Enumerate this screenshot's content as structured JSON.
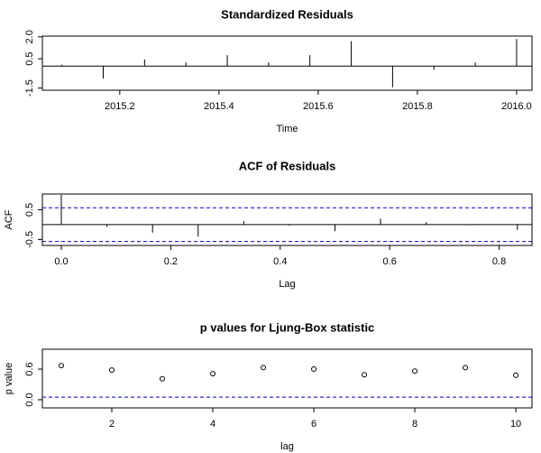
{
  "chart_data": [
    {
      "type": "spike",
      "title": "Standardized Residuals",
      "x_label": "Time",
      "x": [
        2015.0833,
        2015.1667,
        2015.25,
        2015.3333,
        2015.4167,
        2015.5,
        2015.5833,
        2015.6667,
        2015.75,
        2015.8333,
        2015.9167,
        2016
      ],
      "values": [
        0.1,
        -0.85,
        0.45,
        0.25,
        0.75,
        0.25,
        0.75,
        1.7,
        -1.45,
        -0.25,
        0.25,
        1.85
      ],
      "color": "#000000",
      "xlim": [
        2015.044,
        2016.031
      ],
      "ylim": [
        -1.65,
        2.05
      ],
      "xticks": [
        2015.2,
        2015.4,
        2015.6,
        2015.8,
        {
          "value": 2016,
          "label": "2016.0"
        }
      ],
      "yticks": [
        {
          "value": -1.5,
          "label": "-1.5"
        },
        {
          "value": 0.5,
          "label": "0.5"
        },
        {
          "value": 2,
          "label": "2.0"
        }
      ]
    },
    {
      "type": "spike",
      "title": "ACF of Residuals",
      "x_label": "Lag",
      "y_label": "ACF",
      "x": [
        0,
        0.0833,
        0.1667,
        0.25,
        0.3333,
        0.4167,
        0.5,
        0.5833,
        0.6667,
        0.75,
        0.8333
      ],
      "values": [
        1.0,
        -0.07,
        -0.27,
        -0.4,
        0.12,
        -0.03,
        -0.22,
        0.2,
        0.08,
        -0.02,
        -0.18
      ],
      "color": "#000000",
      "hlines": [
        0.566,
        -0.566
      ],
      "hline_color": "#0000cd",
      "xlim": [
        -0.0346,
        0.86
      ],
      "ylim": [
        -0.7,
        1.03
      ],
      "xticks": [
        {
          "value": 0,
          "label": "0.0"
        },
        0.2,
        0.4,
        0.6,
        0.8
      ],
      "yticks": [
        {
          "value": -0.5,
          "label": "-0.5"
        },
        0.5
      ]
    },
    {
      "type": "scatter",
      "title": "p values for Ljung-Box statistic",
      "x_label": "lag",
      "y_label": "p value",
      "x": [
        1,
        2,
        3,
        4,
        5,
        6,
        7,
        8,
        9,
        10
      ],
      "values": [
        0.67,
        0.58,
        0.41,
        0.51,
        0.63,
        0.6,
        0.49,
        0.56,
        0.63,
        0.48
      ],
      "color": "#000000",
      "hlines": [
        0.05
      ],
      "hline_color": "#0000cd",
      "xlim": [
        0.625,
        10.32
      ],
      "ylim": [
        -0.16,
        0.99
      ],
      "xticks": [
        2,
        4,
        6,
        8,
        10
      ],
      "yticks": [
        {
          "value": 0,
          "label": "0.0"
        },
        {
          "value": 0.6,
          "label": "0.6"
        }
      ]
    }
  ]
}
